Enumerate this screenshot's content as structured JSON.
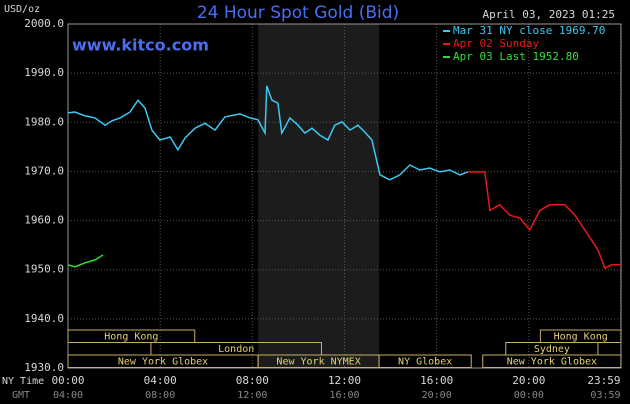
{
  "chart_data": {
    "type": "line",
    "title": "24 Hour Spot Gold (Bid)",
    "date": "April 03, 2023 01:25",
    "website": "www.kitco.com",
    "y_label": "USD/oz",
    "x_label": "NY Time",
    "x2_label": "GMT",
    "xlim": [
      0,
      24
    ],
    "xticks": [
      {
        "value": 0,
        "label": "00:00"
      },
      {
        "value": 4,
        "label": "04:00"
      },
      {
        "value": 8,
        "label": "08:00"
      },
      {
        "value": 12,
        "label": "12:00"
      },
      {
        "value": 16,
        "label": "16:00"
      },
      {
        "value": 20,
        "label": "20:00"
      },
      {
        "value": 23.98,
        "label": "23:59"
      }
    ],
    "gmt_tick_labels": [
      "04:00",
      "08:00",
      "12:00",
      "16:00",
      "20:00",
      "00:00",
      "03:59"
    ],
    "ylim": [
      1930,
      2000
    ],
    "yticks": [
      {
        "value": 1930,
        "label": "1930.0"
      },
      {
        "value": 1940,
        "label": "1940.0"
      },
      {
        "value": 1950,
        "label": "1950.0"
      },
      {
        "value": 1960,
        "label": "1960.0"
      },
      {
        "value": 1970,
        "label": "1970.0"
      },
      {
        "value": 1980,
        "label": "1980.0"
      },
      {
        "value": 1990,
        "label": "1990.0"
      },
      {
        "value": 2000,
        "label": "2000.0"
      }
    ],
    "grid": true,
    "shaded": [
      8.25,
      13.5
    ],
    "sessions": [
      [
        {
          "name": "Hong Kong",
          "start": 0,
          "end": 5.5
        },
        {
          "name": "Hong Kong",
          "start": 20.5,
          "end": 24
        }
      ],
      [
        {
          "name": "London",
          "start": 3.6,
          "end": 11
        },
        {
          "name": "Sydney",
          "start": 19,
          "end": 23
        }
      ],
      [
        {
          "name": "New York Globex",
          "start": 0,
          "end": 8.25
        },
        {
          "name": "New York NYMEX",
          "start": 8.25,
          "end": 13.5
        },
        {
          "name": "NY Globex",
          "start": 13.5,
          "end": 17.5
        },
        {
          "name": "New York Globex",
          "start": 18,
          "end": 24
        }
      ]
    ],
    "series": [
      {
        "name": "Mar 31 NY close 1969.70",
        "color": "#3cc8f0",
        "x": [
          0,
          0.3,
          0.74,
          1.17,
          1.61,
          1.91,
          2.26,
          2.69,
          3.04,
          3.34,
          3.64,
          3.99,
          4.43,
          4.77,
          5.08,
          5.51,
          5.94,
          6.38,
          6.81,
          7.46,
          7.9,
          8.24,
          8.55,
          8.63,
          8.85,
          9.11,
          9.28,
          9.63,
          9.98,
          10.28,
          10.59,
          10.93,
          11.28,
          11.58,
          11.89,
          12.24,
          12.58,
          12.88,
          13.19,
          13.54,
          13.97,
          14.4,
          14.84,
          15.27,
          15.7,
          16.14,
          16.57,
          17.01,
          17.35
        ],
        "values": [
          1981.9,
          1982.1,
          1981.3,
          1980.9,
          1979.4,
          1980.3,
          1980.9,
          1982.1,
          1984.5,
          1982.9,
          1978.4,
          1976.4,
          1977.0,
          1974.4,
          1976.8,
          1978.8,
          1979.8,
          1978.4,
          1981.1,
          1981.7,
          1980.9,
          1980.5,
          1977.8,
          1987.4,
          1984.5,
          1983.9,
          1977.8,
          1980.9,
          1979.4,
          1977.8,
          1978.8,
          1977.4,
          1976.4,
          1979.4,
          1980.1,
          1978.4,
          1979.4,
          1978.0,
          1976.4,
          1969.3,
          1968.3,
          1969.3,
          1971.3,
          1970.3,
          1970.7,
          1969.9,
          1970.3,
          1969.3,
          1969.9
        ]
      },
      {
        "name": "Apr 02 Sunday",
        "color": "#e81818",
        "x": [
          17.35,
          18.09,
          18.31,
          18.74,
          19.18,
          19.61,
          20.04,
          20.48,
          20.91,
          21.56,
          22.0,
          22.43,
          23.0,
          23.3,
          23.6,
          23.99
        ],
        "values": [
          1969.9,
          1969.9,
          1962.1,
          1963.2,
          1961.1,
          1960.5,
          1958.1,
          1962.1,
          1963.2,
          1963.2,
          1961.1,
          1958.1,
          1954.0,
          1950.3,
          1951.0,
          1951.0
        ]
      },
      {
        "name": "Apr 03 Last 1952.80",
        "color": "#30e030",
        "x": [
          0,
          0.3,
          0.74,
          1.17,
          1.52
        ],
        "values": [
          1951.0,
          1950.6,
          1951.4,
          1952.0,
          1953.0
        ]
      }
    ]
  }
}
